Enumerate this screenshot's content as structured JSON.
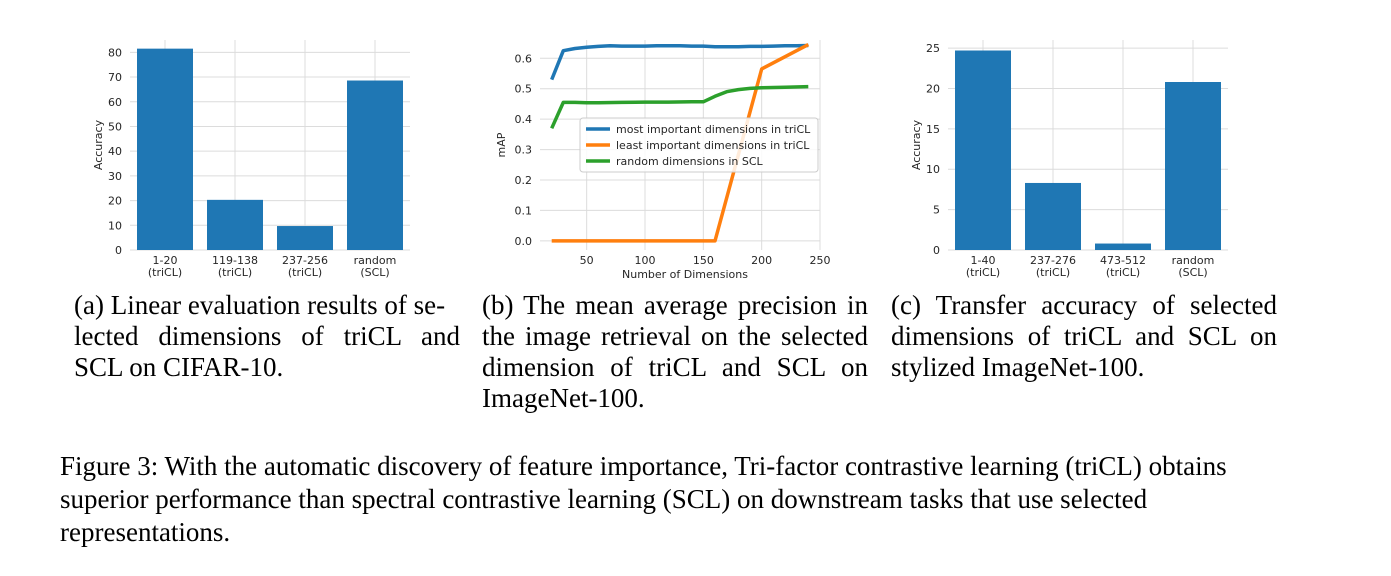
{
  "chart_data": [
    {
      "id": "a",
      "type": "bar",
      "categories": [
        [
          "1-20",
          "(triCL)"
        ],
        [
          "119-138",
          "(triCL)"
        ],
        [
          "237-256",
          "(triCL)"
        ],
        [
          "random",
          "(SCL)"
        ]
      ],
      "values": [
        81.5,
        20.3,
        9.7,
        68.6
      ],
      "ylabel": "Accuracy",
      "ylim": [
        0,
        85
      ],
      "yticks": [
        0,
        10,
        20,
        30,
        40,
        50,
        60,
        70,
        80
      ],
      "bar_color": "#1f77b4",
      "grid": true
    },
    {
      "id": "b",
      "type": "line",
      "xlabel": "Number of Dimensions",
      "ylabel": "mAP",
      "xlim": [
        10,
        250
      ],
      "ylim": [
        -0.03,
        0.66
      ],
      "xticks": [
        50,
        100,
        150,
        200,
        250
      ],
      "yticks": [
        0.0,
        0.1,
        0.2,
        0.3,
        0.4,
        0.5,
        0.6
      ],
      "grid": true,
      "legend": "center-right",
      "series": [
        {
          "name": "most important dimensions in triCL",
          "color": "#1f77b4",
          "x": [
            20,
            30,
            40,
            50,
            60,
            70,
            80,
            90,
            100,
            110,
            120,
            130,
            140,
            150,
            160,
            170,
            180,
            190,
            200,
            210,
            220,
            230,
            240
          ],
          "y": [
            0.53,
            0.625,
            0.632,
            0.636,
            0.639,
            0.641,
            0.64,
            0.64,
            0.64,
            0.641,
            0.641,
            0.641,
            0.64,
            0.64,
            0.638,
            0.638,
            0.638,
            0.639,
            0.639,
            0.64,
            0.641,
            0.641,
            0.642
          ]
        },
        {
          "name": "least important dimensions in triCL",
          "color": "#ff7f0e",
          "x": [
            20,
            160,
            200,
            240
          ],
          "y": [
            0.0,
            0.0,
            0.565,
            0.645
          ]
        },
        {
          "name": "random dimensions in SCL",
          "color": "#2ca02c",
          "x": [
            20,
            30,
            40,
            50,
            60,
            80,
            100,
            120,
            140,
            150,
            160,
            170,
            180,
            190,
            200,
            220,
            240
          ],
          "y": [
            0.37,
            0.455,
            0.455,
            0.454,
            0.454,
            0.455,
            0.456,
            0.456,
            0.457,
            0.457,
            0.475,
            0.49,
            0.497,
            0.501,
            0.503,
            0.505,
            0.507
          ]
        }
      ]
    },
    {
      "id": "c",
      "type": "bar",
      "categories": [
        [
          "1-40",
          "(triCL)"
        ],
        [
          "237-276",
          "(triCL)"
        ],
        [
          "473-512",
          "(triCL)"
        ],
        [
          "random",
          "(SCL)"
        ]
      ],
      "values": [
        24.7,
        8.3,
        0.8,
        20.8
      ],
      "ylabel": "Accuracy",
      "ylim": [
        0,
        26
      ],
      "yticks": [
        0,
        5,
        10,
        15,
        20,
        25
      ],
      "bar_color": "#1f77b4",
      "grid": true
    }
  ],
  "captions": {
    "a": [
      "(a) Linear evaluation results of se-",
      "lected dimensions of triCL and",
      "SCL on CIFAR-10."
    ],
    "b": [
      "(b) The mean average precision in",
      "the image retrieval on the selected",
      "dimension of triCL and SCL on",
      "ImageNet-100."
    ],
    "c": [
      "(c) Transfer accuracy of selected",
      "dimensions of triCL and SCL on",
      "stylized ImageNet-100."
    ]
  },
  "figure_caption": "Figure 3: With the automatic discovery of feature importance, Tri-factor contrastive learning (triCL) obtains superior performance than spectral contrastive learning (SCL) on downstream tasks that use selected representations."
}
